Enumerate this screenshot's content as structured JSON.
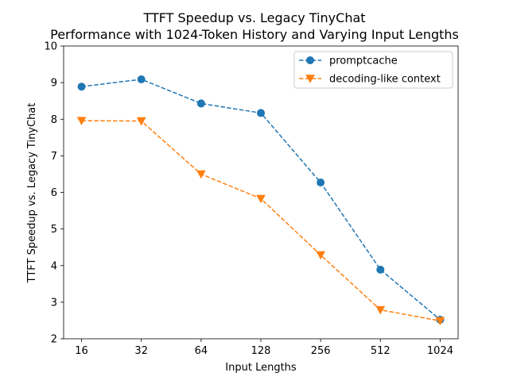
{
  "chart_data": {
    "type": "line",
    "title": "TTFT Speedup vs. Legacy TinyChat",
    "subtitle": "Performance with 1024-Token History and Varying Input Lengths",
    "xlabel": "Input Lengths",
    "ylabel": "TTFT Speedup vs. Legacy TinyChat",
    "categories": [
      "16",
      "32",
      "64",
      "128",
      "256",
      "512",
      "1024"
    ],
    "ylim": [
      2,
      10
    ],
    "yticks": [
      "2",
      "3",
      "4",
      "5",
      "6",
      "7",
      "8",
      "9",
      "10"
    ],
    "grid": false,
    "legend_position": "top-right",
    "series": [
      {
        "name": "promptcache",
        "color": "#1f77b4",
        "marker": "circle",
        "linestyle": "dashed",
        "values": [
          8.89,
          9.09,
          8.43,
          8.17,
          6.27,
          3.89,
          2.52
        ]
      },
      {
        "name": "decoding-like context",
        "color": "#ff7f0e",
        "marker": "triangle-down",
        "linestyle": "dashed",
        "values": [
          7.96,
          7.95,
          6.5,
          5.83,
          4.29,
          2.79,
          2.49
        ]
      }
    ]
  }
}
